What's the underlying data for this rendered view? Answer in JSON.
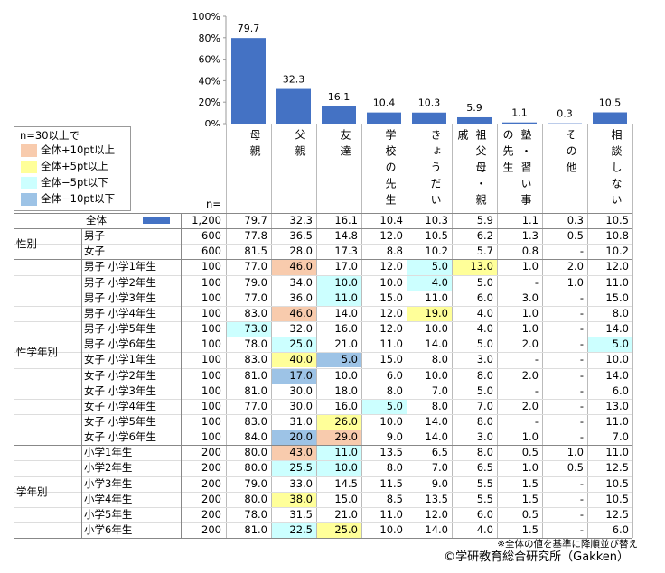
{
  "chart_data": {
    "type": "bar",
    "categories": [
      "母親",
      "父親",
      "友達",
      "学校の先生",
      "きょうだい",
      "祖父母・親戚",
      "塾・習い事の先生",
      "その他",
      "相談しない"
    ],
    "values": [
      79.7,
      32.3,
      16.1,
      10.4,
      10.3,
      5.9,
      1.1,
      0.3,
      10.5
    ],
    "color": "#4472c4",
    "ylim": [
      0,
      100
    ],
    "yticks": [
      {
        "value": 0,
        "label": "0%"
      },
      {
        "value": 20,
        "label": "20%"
      },
      {
        "value": 40,
        "label": "40%"
      },
      {
        "value": 60,
        "label": "60%"
      },
      {
        "value": 80,
        "label": "80%"
      },
      {
        "value": 100,
        "label": "100%"
      }
    ]
  },
  "legend": {
    "title": "n=30以上で",
    "items": [
      {
        "label": "全体+10pt以上",
        "color": "#f8cbad"
      },
      {
        "label": "全体+5pt以上",
        "color": "#ffff99"
      },
      {
        "label": "全体−5pt以下",
        "color": "#ccffff"
      },
      {
        "label": "全体−10pt以下",
        "color": "#9dc3e6"
      }
    ]
  },
  "table": {
    "n_header": "n=",
    "total": {
      "label": "全体",
      "n": "1,200"
    },
    "groups": [
      {
        "label": "性別",
        "rows": [
          {
            "label": "男子",
            "n": "600",
            "cells": [
              "77.8",
              "36.5",
              "14.8",
              "12.0",
              "10.5",
              "6.2",
              "1.3",
              "0.5",
              "10.8"
            ]
          },
          {
            "label": "女子",
            "n": "600",
            "cells": [
              "81.5",
              "28.0",
              "17.3",
              "8.8",
              "10.2",
              "5.7",
              "0.8",
              "-",
              "10.2"
            ]
          }
        ]
      },
      {
        "label": "性学年別",
        "rows": [
          {
            "label": "男子 小学1年生",
            "n": "100",
            "cells": [
              "77.0",
              "46.0",
              "17.0",
              "12.0",
              "5.0",
              "13.0",
              "1.0",
              "2.0",
              "12.0"
            ],
            "highlight": [
              [
                1,
                0
              ],
              [
                4,
                2
              ],
              [
                5,
                1
              ]
            ]
          },
          {
            "label": "男子 小学2年生",
            "n": "100",
            "cells": [
              "79.0",
              "34.0",
              "10.0",
              "10.0",
              "4.0",
              "5.0",
              "-",
              "1.0",
              "11.0"
            ],
            "highlight": [
              [
                2,
                2
              ],
              [
                4,
                2
              ]
            ]
          },
          {
            "label": "男子 小学3年生",
            "n": "100",
            "cells": [
              "77.0",
              "36.0",
              "11.0",
              "15.0",
              "11.0",
              "6.0",
              "3.0",
              "-",
              "15.0"
            ],
            "highlight": [
              [
                2,
                2
              ]
            ]
          },
          {
            "label": "男子 小学4年生",
            "n": "100",
            "cells": [
              "83.0",
              "46.0",
              "14.0",
              "12.0",
              "19.0",
              "4.0",
              "1.0",
              "-",
              "8.0"
            ],
            "highlight": [
              [
                1,
                0
              ],
              [
                4,
                1
              ]
            ]
          },
          {
            "label": "男子 小学5年生",
            "n": "100",
            "cells": [
              "73.0",
              "32.0",
              "16.0",
              "12.0",
              "10.0",
              "4.0",
              "1.0",
              "-",
              "14.0"
            ],
            "highlight": [
              [
                0,
                2
              ]
            ]
          },
          {
            "label": "男子 小学6年生",
            "n": "100",
            "cells": [
              "78.0",
              "25.0",
              "21.0",
              "11.0",
              "14.0",
              "5.0",
              "2.0",
              "-",
              "5.0"
            ],
            "highlight": [
              [
                1,
                2
              ],
              [
                8,
                2
              ]
            ]
          },
          {
            "label": "女子 小学1年生",
            "n": "100",
            "cells": [
              "83.0",
              "40.0",
              "5.0",
              "15.0",
              "8.0",
              "3.0",
              "-",
              "-",
              "10.0"
            ],
            "highlight": [
              [
                1,
                1
              ],
              [
                2,
                3
              ]
            ]
          },
          {
            "label": "女子 小学2年生",
            "n": "100",
            "cells": [
              "81.0",
              "17.0",
              "10.0",
              "6.0",
              "10.0",
              "8.0",
              "2.0",
              "-",
              "14.0"
            ],
            "highlight": [
              [
                1,
                3
              ]
            ]
          },
          {
            "label": "女子 小学3年生",
            "n": "100",
            "cells": [
              "81.0",
              "30.0",
              "18.0",
              "8.0",
              "7.0",
              "5.0",
              "-",
              "-",
              "6.0"
            ]
          },
          {
            "label": "女子 小学4年生",
            "n": "100",
            "cells": [
              "77.0",
              "30.0",
              "16.0",
              "5.0",
              "8.0",
              "7.0",
              "2.0",
              "-",
              "13.0"
            ],
            "highlight": [
              [
                3,
                2
              ]
            ]
          },
          {
            "label": "女子 小学5年生",
            "n": "100",
            "cells": [
              "83.0",
              "31.0",
              "26.0",
              "10.0",
              "14.0",
              "8.0",
              "-",
              "-",
              "11.0"
            ],
            "highlight": [
              [
                2,
                1
              ]
            ]
          },
          {
            "label": "女子 小学6年生",
            "n": "100",
            "cells": [
              "84.0",
              "20.0",
              "29.0",
              "9.0",
              "14.0",
              "3.0",
              "1.0",
              "-",
              "7.0"
            ],
            "highlight": [
              [
                1,
                3
              ],
              [
                2,
                0
              ]
            ]
          }
        ]
      },
      {
        "label": "学年別",
        "rows": [
          {
            "label": "小学1年生",
            "n": "200",
            "cells": [
              "80.0",
              "43.0",
              "11.0",
              "13.5",
              "6.5",
              "8.0",
              "0.5",
              "1.0",
              "11.0"
            ],
            "highlight": [
              [
                1,
                0
              ],
              [
                2,
                2
              ]
            ]
          },
          {
            "label": "小学2年生",
            "n": "200",
            "cells": [
              "80.0",
              "25.5",
              "10.0",
              "8.0",
              "7.0",
              "6.5",
              "1.0",
              "0.5",
              "12.5"
            ],
            "highlight": [
              [
                1,
                2
              ],
              [
                2,
                2
              ]
            ]
          },
          {
            "label": "小学3年生",
            "n": "200",
            "cells": [
              "79.0",
              "33.0",
              "14.5",
              "11.5",
              "9.0",
              "5.5",
              "1.5",
              "-",
              "10.5"
            ]
          },
          {
            "label": "小学4年生",
            "n": "200",
            "cells": [
              "80.0",
              "38.0",
              "15.0",
              "8.5",
              "13.5",
              "5.5",
              "1.5",
              "-",
              "10.5"
            ],
            "highlight": [
              [
                1,
                1
              ]
            ]
          },
          {
            "label": "小学5年生",
            "n": "200",
            "cells": [
              "78.0",
              "31.5",
              "21.0",
              "11.0",
              "12.0",
              "6.0",
              "0.5",
              "-",
              "12.5"
            ]
          },
          {
            "label": "小学6年生",
            "n": "200",
            "cells": [
              "81.0",
              "22.5",
              "25.0",
              "10.0",
              "14.0",
              "4.0",
              "1.5",
              "-",
              "6.0"
            ],
            "highlight": [
              [
                1,
                2
              ],
              [
                2,
                1
              ]
            ]
          }
        ]
      }
    ]
  },
  "notes": [
    "※全体の値を基準に降順並び替え",
    "©学研教育総合研究所（Gakken）"
  ]
}
